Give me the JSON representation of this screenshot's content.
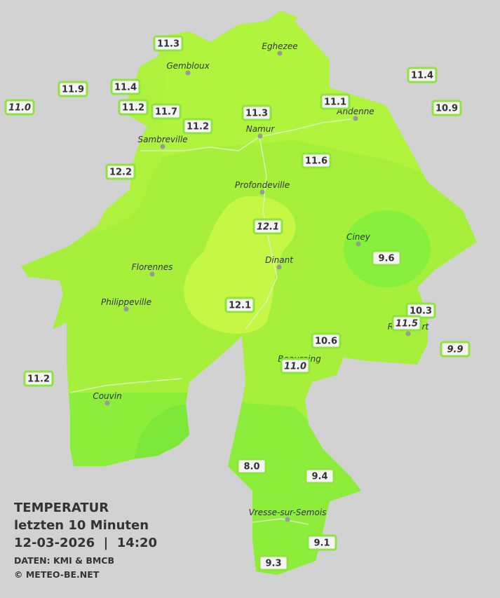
{
  "title": {
    "heading": "TEMPERATUR",
    "period": "letzten 10 Minuten",
    "datetime": "12-03-2026  |  14:20",
    "source": "DATEN: KMI & BMCB",
    "copyright": "© METEO-BE.NET"
  },
  "towns": [
    "Eghezee",
    "Gembloux",
    "Andenne",
    "Namur",
    "Sambreville",
    "Profondeville",
    "Ciney",
    "Dinant",
    "Florennes",
    "Philippeville",
    "Beauraing",
    "Rochefort",
    "Couvin",
    "Vresse-sur-Semois"
  ],
  "stations": [
    {
      "label": "11.3"
    },
    {
      "label": "11.9"
    },
    {
      "label": "11.4"
    },
    {
      "label": "11.0",
      "italic": true
    },
    {
      "label": "11.2"
    },
    {
      "label": "11.7"
    },
    {
      "label": "11.2"
    },
    {
      "label": "11.3"
    },
    {
      "label": "11.1"
    },
    {
      "label": "11.4"
    },
    {
      "label": "10.9"
    },
    {
      "label": "11.6"
    },
    {
      "label": "12.2"
    },
    {
      "label": "12.1",
      "italic": true
    },
    {
      "label": "9.6"
    },
    {
      "label": "12.1"
    },
    {
      "label": "10.3"
    },
    {
      "label": "11.5",
      "italic": true
    },
    {
      "label": "9.9",
      "italic": true
    },
    {
      "label": "10.6"
    },
    {
      "label": "11.0",
      "italic": true
    },
    {
      "label": "11.2"
    },
    {
      "label": "8.0"
    },
    {
      "label": "9.4"
    },
    {
      "label": "9.1"
    },
    {
      "label": "9.3"
    }
  ]
}
